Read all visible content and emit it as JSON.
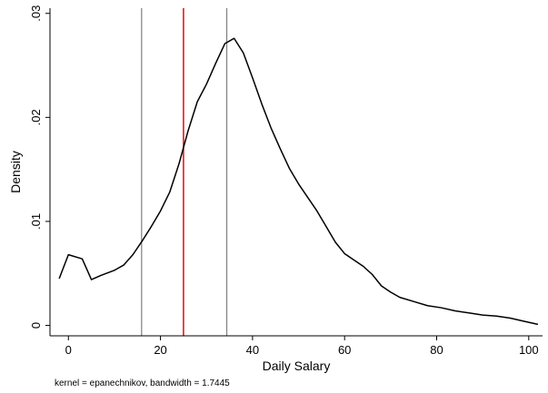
{
  "chart_data": {
    "type": "line",
    "title": "",
    "xlabel": "Daily Salary",
    "ylabel": "Density",
    "note": "kernel = epanechnikov, bandwidth = 1.7445",
    "xlim": [
      -4,
      103
    ],
    "ylim": [
      -0.001,
      0.0305
    ],
    "x_ticks": [
      0,
      20,
      40,
      60,
      80,
      100
    ],
    "x_tick_labels": [
      "0",
      "20",
      "40",
      "60",
      "80",
      "100"
    ],
    "y_ticks": [
      0,
      0.01,
      0.02,
      0.03
    ],
    "y_tick_labels": [
      "0",
      ".01",
      ".02",
      ".03"
    ],
    "grid": false,
    "series": [
      {
        "x": [
          -2,
          0,
          3,
          5,
          7,
          10,
          12,
          14,
          16,
          18,
          20,
          22,
          24,
          26,
          28,
          30,
          32,
          34,
          36,
          38,
          40,
          42,
          44,
          46,
          48,
          50,
          52,
          54,
          56,
          58,
          60,
          62,
          64,
          66,
          68,
          70,
          72,
          75,
          78,
          81,
          84,
          87,
          90,
          93,
          96,
          99,
          102
        ],
        "y": [
          0.0045,
          0.0068,
          0.0064,
          0.0044,
          0.0048,
          0.0053,
          0.0058,
          0.0068,
          0.0081,
          0.0095,
          0.011,
          0.0128,
          0.0155,
          0.0187,
          0.0215,
          0.0232,
          0.0252,
          0.0271,
          0.0276,
          0.0262,
          0.0238,
          0.0213,
          0.019,
          0.017,
          0.0151,
          0.0136,
          0.0123,
          0.011,
          0.0095,
          0.008,
          0.0069,
          0.0063,
          0.0057,
          0.0049,
          0.0038,
          0.0032,
          0.0027,
          0.0023,
          0.0019,
          0.0017,
          0.0014,
          0.0012,
          0.001,
          0.0009,
          0.0007,
          0.0004,
          0.0001
        ],
        "color": "#000000"
      }
    ],
    "reference_lines": [
      {
        "x": 15.9,
        "color": "#7f7f7f"
      },
      {
        "x": 25,
        "color": "#e41a1c"
      },
      {
        "x": 34.4,
        "color": "#7f7f7f"
      }
    ]
  }
}
